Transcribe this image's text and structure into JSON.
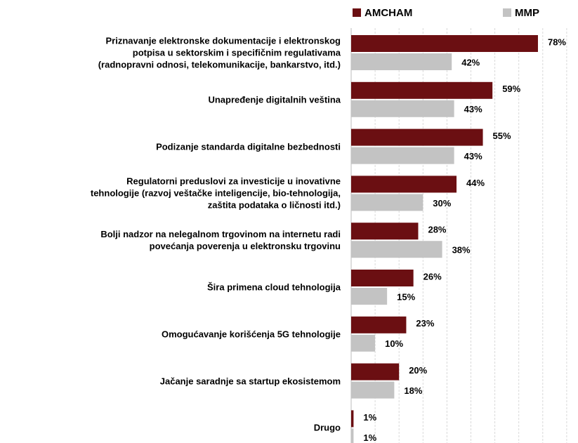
{
  "chart_data": {
    "type": "hbar",
    "categories": [
      "Priznavanje elektronske dokumentacije i elektronskog\npotpisa u sektorskim i specifičnim regulativama\n(radnopravni odnosi, telekomunikacije, bankarstvo, itd.)",
      "Unapređenje digitalnih veština",
      "Podizanje standarda digitalne bezbednosti",
      "Regulatorni preduslovi za investicije u inovativne\ntehnologije (razvoj veštačke inteligencije, bio-tehnologija,\nzaštita podataka o ličnosti itd.)",
      "Bolji nadzor na nelegalnom trgovinom na internetu radi\npovećanja poverenja u elektronsku trgovinu",
      "Šira primena cloud tehnologija",
      "Omogućavanje korišćenja 5G tehnologije",
      "Jačanje saradnje sa startup ekosistemom",
      "Drugo"
    ],
    "series": [
      {
        "name": "AMCHAM",
        "color": "#6b0f12",
        "values": [
          78,
          59,
          55,
          44,
          28,
          26,
          23,
          20,
          1
        ],
        "value_labels": [
          "78%",
          "59%",
          "55%",
          "44%",
          "28%",
          "26%",
          "23%",
          "20%",
          "1%"
        ]
      },
      {
        "name": "MMP",
        "color": "#c3c3c3",
        "values": [
          42,
          43,
          43,
          30,
          38,
          15,
          10,
          18,
          1
        ],
        "value_labels": [
          "42%",
          "43%",
          "43%",
          "30%",
          "38%",
          "15%",
          "10%",
          "18%",
          "1%"
        ]
      }
    ],
    "xlim": [
      0,
      90
    ],
    "xticks": [
      0,
      10,
      20,
      30,
      40,
      50,
      60,
      70,
      80,
      90
    ],
    "grid": true
  }
}
